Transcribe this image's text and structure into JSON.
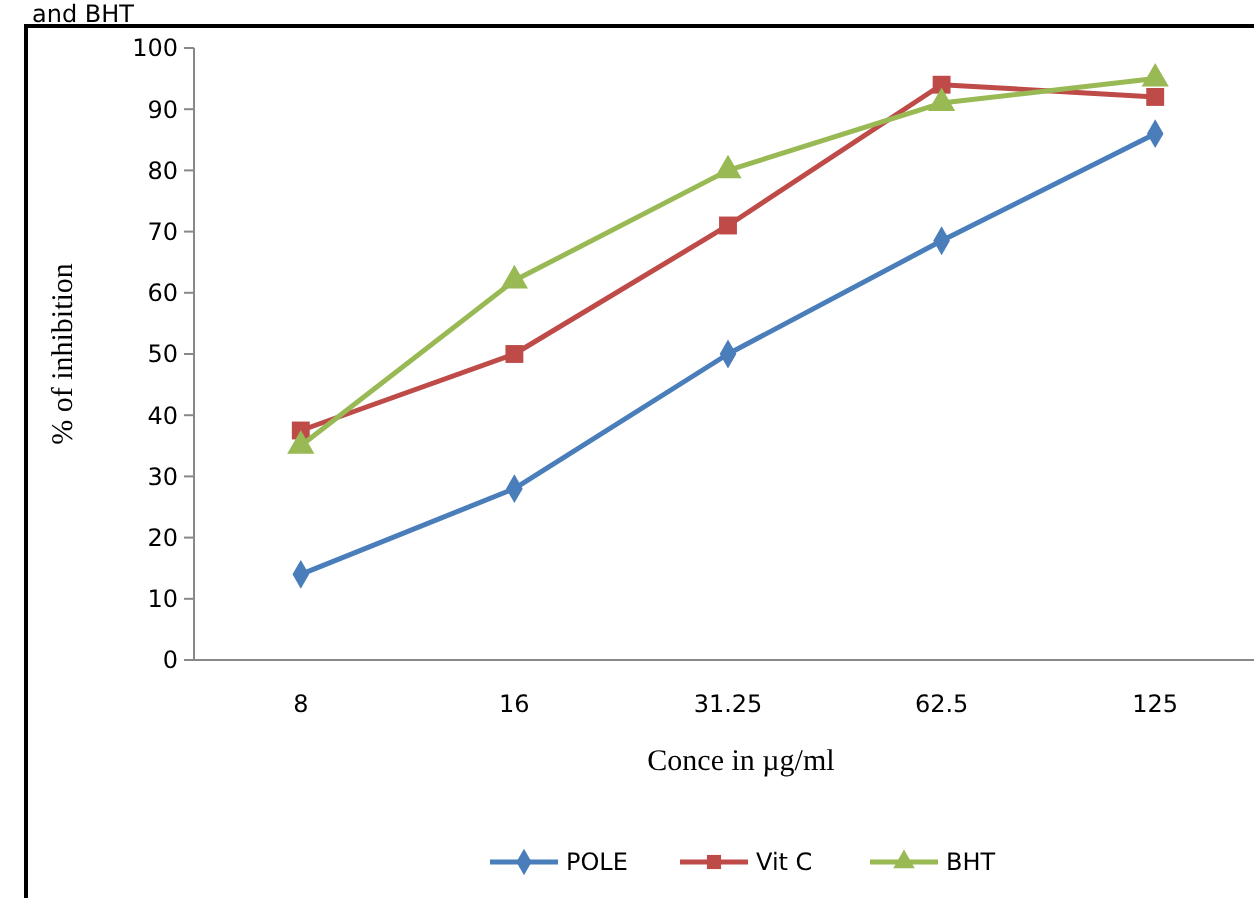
{
  "chart_data": {
    "type": "line",
    "annotations": [
      "and BHT"
    ],
    "xlabel": "Conce in µg/ml",
    "ylabel": "% of inhibition",
    "categories": [
      "8",
      "16",
      "31.25",
      "62.5",
      "125"
    ],
    "series": [
      {
        "name": "POLE",
        "color": "#4a7ebb",
        "marker": "diamond",
        "values": [
          14,
          28,
          50,
          68.5,
          86
        ]
      },
      {
        "name": "Vit C",
        "color": "#be4b48",
        "marker": "square",
        "values": [
          37.5,
          50,
          71,
          94,
          92
        ]
      },
      {
        "name": "BHT",
        "color": "#98b954",
        "marker": "triangle",
        "values": [
          35,
          62,
          80,
          91,
          95
        ]
      }
    ],
    "ylim": [
      0,
      100
    ],
    "yticks": [
      0,
      10,
      20,
      30,
      40,
      50,
      60,
      70,
      80,
      90,
      100
    ],
    "grid": false,
    "legend": "bottom",
    "line_style": "solid"
  }
}
